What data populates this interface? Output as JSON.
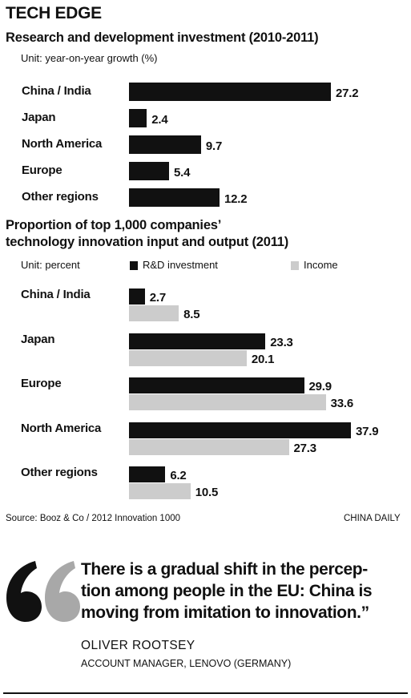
{
  "header": {
    "title": "TECH EDGE"
  },
  "chart_data": [
    {
      "type": "bar",
      "title": "Research and development investment (2010-2011)",
      "unit_label": "Unit: year-on-year growth (%)",
      "categories": [
        "China / India",
        "Japan",
        "North America",
        "Europe",
        "Other regions"
      ],
      "values": [
        27.2,
        2.4,
        9.7,
        5.4,
        12.2
      ],
      "value_labels": [
        "27.2",
        "2.4",
        "9.7",
        "5.4",
        "12.2"
      ],
      "orientation": "horizontal",
      "colors": {
        "bar": "#111111"
      },
      "grid": false
    },
    {
      "type": "bar",
      "title_lines": [
        "Proportion of top 1,000 companies’",
        "technology innovation input and output (2011)"
      ],
      "unit_label": "Unit: percent",
      "categories": [
        "China / India",
        "Japan",
        "Europe",
        "North America",
        "Other regions"
      ],
      "orientation": "horizontal",
      "legend_position": "top",
      "series": [
        {
          "name": "R&D investment",
          "values": [
            2.7,
            23.3,
            29.9,
            37.9,
            6.2
          ],
          "value_labels": [
            "2.7",
            "23.3",
            "29.9",
            "37.9",
            "6.2"
          ],
          "color": "#111111"
        },
        {
          "name": "Income",
          "values": [
            8.5,
            20.1,
            33.6,
            27.3,
            10.5
          ],
          "value_labels": [
            "8.5",
            "20.1",
            "33.6",
            "27.3",
            "10.5"
          ],
          "color": "#cccccc"
        }
      ],
      "grid": false
    }
  ],
  "footer": {
    "source": "Source: Booz & Co / 2012 Innovation 1000",
    "credit": "CHINA DAILY"
  },
  "quote": {
    "lines": [
      "There is a gradual shift in the percep-",
      "tion among people in the EU: China is",
      "moving from imitation to innovation.”"
    ],
    "author": "OLIVER ROOTSEY",
    "role": "ACCOUNT MANAGER, LENOVO (GERMANY)"
  }
}
